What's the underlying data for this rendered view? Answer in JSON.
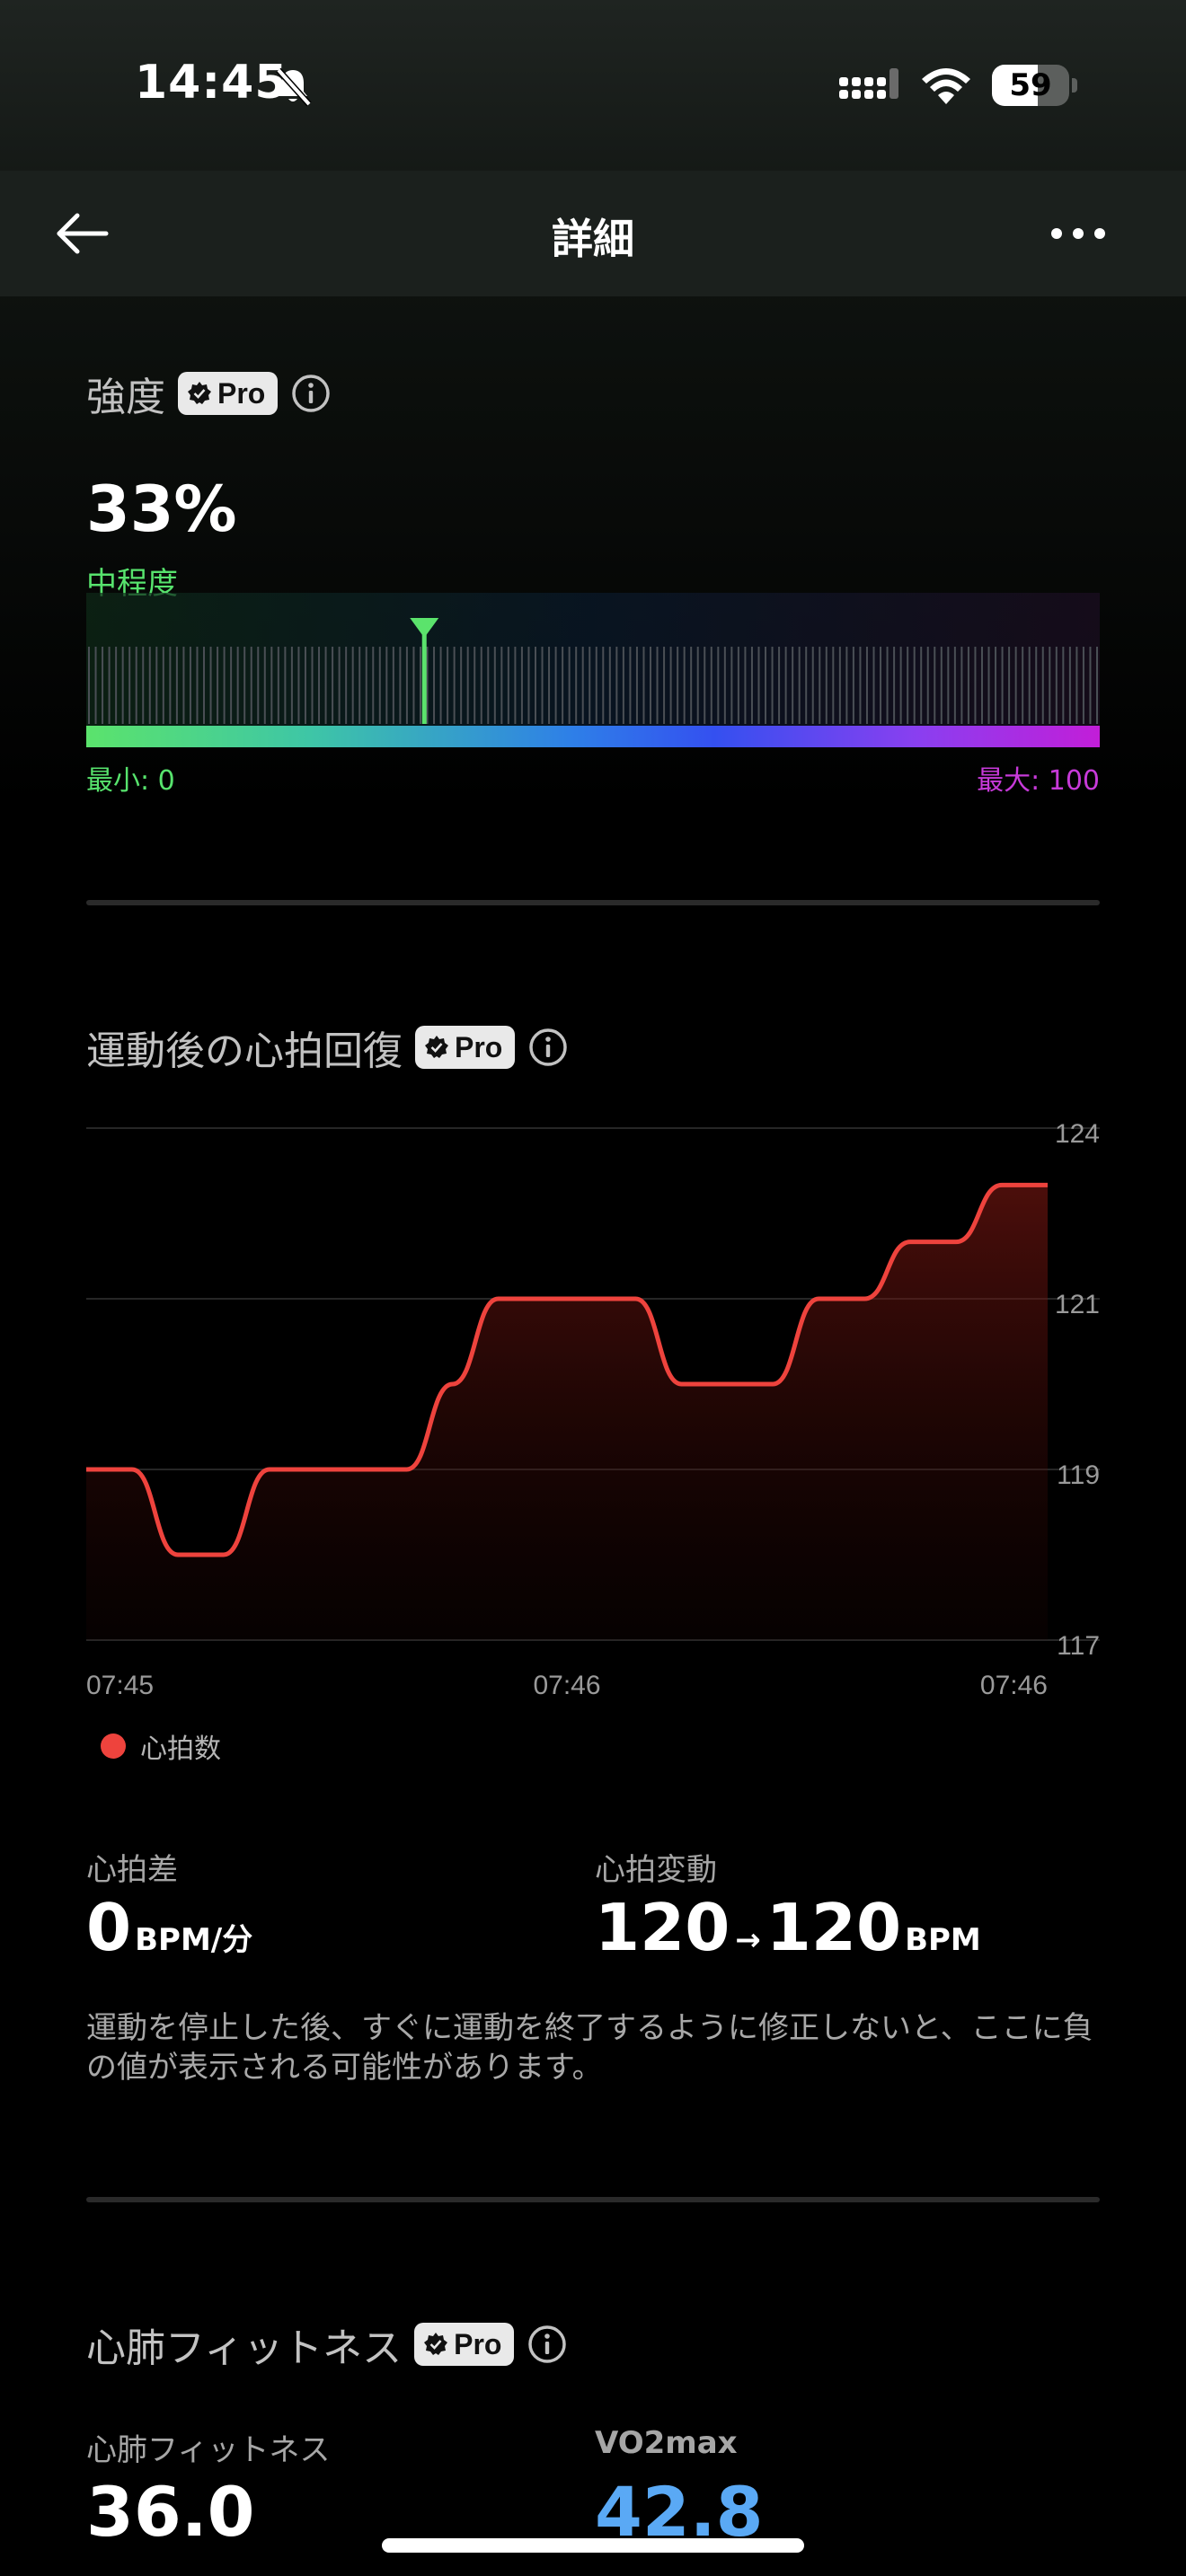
{
  "status_bar": {
    "time": "14:45",
    "battery": 59
  },
  "header": {
    "title": "詳細"
  },
  "intensity": {
    "title": "強度",
    "pro_label": "Pro",
    "value": "33%",
    "level_label": "中程度",
    "marker_fraction": 0.33,
    "min_label": "最小: 0",
    "max_label": "最大: 100"
  },
  "recovery": {
    "title": "運動後の心拍回復",
    "pro_label": "Pro",
    "legend": "心拍数",
    "stats": {
      "diff_label": "心拍差",
      "diff_value": "0",
      "diff_unit": "BPM/分",
      "change_label": "心拍変動",
      "change_from": "120",
      "change_arrow": "→",
      "change_to": "120",
      "change_unit": "BPM"
    },
    "note": "運動を停止した後、すぐに運動を終了するように修正しないと、ここに負の値が表示される可能性があります。"
  },
  "chart_data": {
    "type": "line",
    "x_tick_labels": [
      "07:45",
      "07:46",
      "07:46"
    ],
    "y_tick_labels": [
      "124",
      "121",
      "119",
      "117"
    ],
    "series": [
      {
        "name": "心拍数",
        "color": "#ee433d",
        "values": [
          119,
          119,
          118,
          118,
          119,
          119,
          119,
          119,
          120,
          121,
          121,
          121,
          121,
          120,
          120,
          120,
          121,
          121,
          122,
          122,
          123,
          123
        ]
      }
    ],
    "grid": true,
    "legend_position": "bottom-left"
  },
  "cardio": {
    "title": "心肺フィットネス",
    "pro_label": "Pro",
    "fitness_label": "心肺フィットネス",
    "fitness_value": "36.0",
    "vo2_label": "VO2max",
    "vo2_value": "42.8"
  }
}
